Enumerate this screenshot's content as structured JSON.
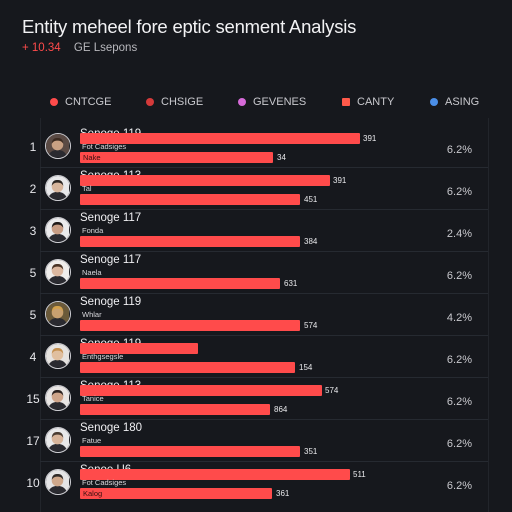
{
  "title": "Entity meheel fore eptic senment Analysis",
  "subtitle": {
    "delta": "+ 10.34",
    "label": "GE Lsepons"
  },
  "legend": [
    {
      "label": "CNTCGE",
      "color": "#ff4b4b",
      "shape": "circle"
    },
    {
      "label": "CHSIGE",
      "color": "#d43a3a",
      "shape": "circle"
    },
    {
      "label": "GEVENES",
      "color": "#d66ad8",
      "shape": "circle"
    },
    {
      "label": "CANTY",
      "color": "#ff5a4a",
      "shape": "square"
    },
    {
      "label": "ASING",
      "color": "#4b8fe8",
      "shape": "circle"
    }
  ],
  "chart_data": {
    "type": "bar",
    "orientation": "horizontal",
    "rows": [
      {
        "rank": "1",
        "name": "Senoge 119",
        "secondary_label": "Fot Cadsiges",
        "tertiary_label": "Nake",
        "bar1": 300,
        "bar1_label": "391",
        "bar2": 243,
        "bar2_label": "34",
        "percent": "6.2%"
      },
      {
        "rank": "2",
        "name": "Senoge 113",
        "secondary_label": "Tal",
        "tertiary_label": "",
        "bar1": 270,
        "bar1_label": "391",
        "bar2": 270,
        "bar2_label": "451",
        "percent": "6.2%"
      },
      {
        "rank": "3",
        "name": "Senoge 117",
        "secondary_label": "Fonda",
        "tertiary_label": "",
        "bar1": 0,
        "bar1_label": "",
        "bar2": 270,
        "bar2_label": "384",
        "percent": "2.4%"
      },
      {
        "rank": "5",
        "name": "Senoge 117",
        "secondary_label": "Naela",
        "tertiary_label": "",
        "bar1": 0,
        "bar1_label": "",
        "bar2": 250,
        "bar2_label": "631",
        "percent": "6.2%"
      },
      {
        "rank": "5",
        "name": "Senoge 119",
        "secondary_label": "Whlar",
        "tertiary_label": "",
        "bar1": 0,
        "bar1_label": "",
        "bar2": 270,
        "bar2_label": "574",
        "percent": "4.2%"
      },
      {
        "rank": "4",
        "name": "Senoge 119",
        "secondary_label": "Enthgsegsle",
        "tertiary_label": "",
        "bar1": 138,
        "bar1_label": "",
        "bar2": 265,
        "bar2_label": "154",
        "percent": "6.2%"
      },
      {
        "rank": "15",
        "name": "Senoge 113",
        "secondary_label": "Tanice",
        "tertiary_label": "",
        "bar1": 262,
        "bar1_label": "574",
        "bar2": 240,
        "bar2_label": "864",
        "percent": "6.2%"
      },
      {
        "rank": "17",
        "name": "Senoge 180",
        "secondary_label": "Fatue",
        "tertiary_label": "",
        "bar1": 0,
        "bar1_label": "",
        "bar2": 270,
        "bar2_label": "351",
        "percent": "6.2%"
      },
      {
        "rank": "10",
        "name": "Senoe U6",
        "secondary_label": "Fot Cadsiges",
        "tertiary_label": "Kalog",
        "bar1": 290,
        "bar1_label": "511",
        "bar2": 242,
        "bar2_label": "361",
        "percent": "6.2%"
      }
    ]
  },
  "avatars": [
    {
      "skin": "#c9a184",
      "hair": "#3b2a20",
      "bg": "#5a4a44"
    },
    {
      "skin": "#d7b59c",
      "hair": "#2b2522",
      "bg": "#e8e8ea"
    },
    {
      "skin": "#c79d84",
      "hair": "#1f1a18",
      "bg": "#ebebec"
    },
    {
      "skin": "#dcb8a0",
      "hair": "#4a3426",
      "bg": "#f0eeec"
    },
    {
      "skin": "#c8a070",
      "hair": "#d4a24a",
      "bg": "#6b5a3a"
    },
    {
      "skin": "#e0bf9f",
      "hair": "#c48f4e",
      "bg": "#e6e3e0"
    },
    {
      "skin": "#cfa58a",
      "hair": "#2c2220",
      "bg": "#e9e6e4"
    },
    {
      "skin": "#d7b49a",
      "hair": "#4a3c32",
      "bg": "#e9e9ea"
    },
    {
      "skin": "#cfa88c",
      "hair": "#2f2a28",
      "bg": "#e4e4e6"
    }
  ]
}
